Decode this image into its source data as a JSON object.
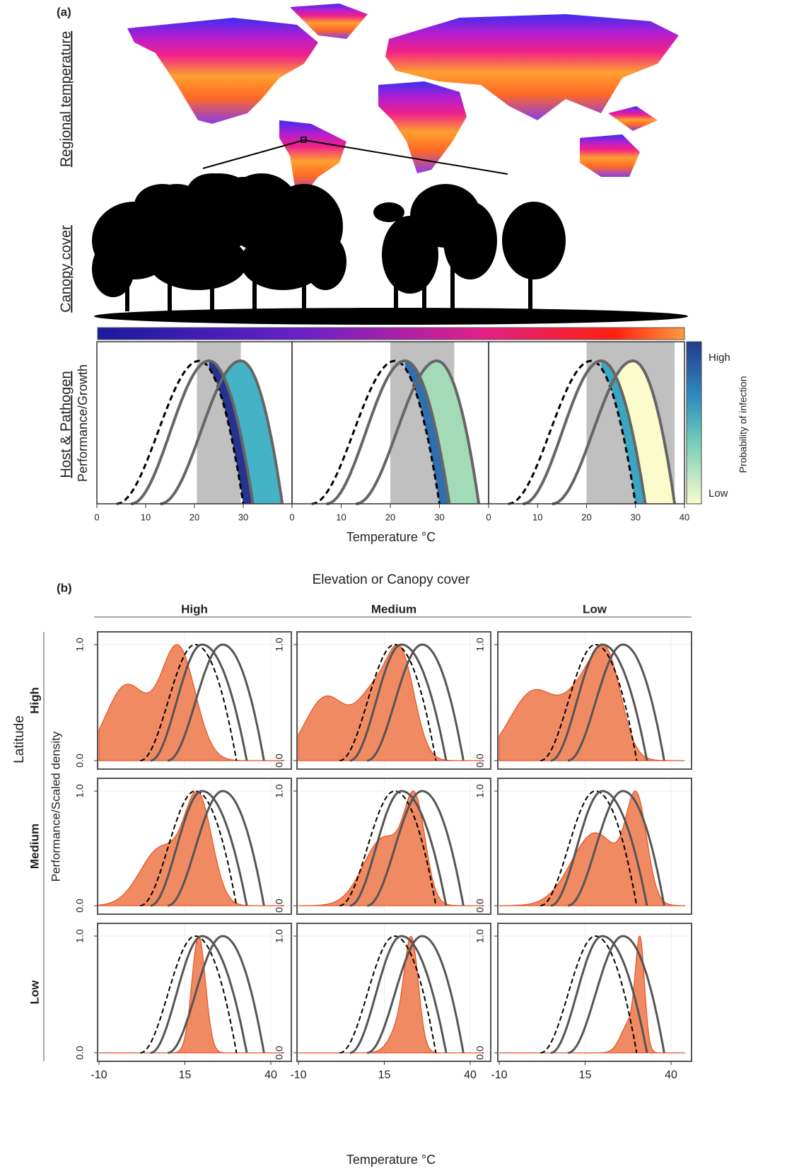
{
  "panel_a": {
    "label": "(a)",
    "row_labels": [
      "Regional temperature",
      "Canopy cover",
      "Host & Pathogen"
    ],
    "y_label": "Performance/Growth",
    "x_label": "Temperature °C",
    "xlim": [
      0,
      40
    ],
    "xticks": [
      0,
      10,
      20,
      30,
      40
    ],
    "legend": {
      "title": "Probability of infection",
      "high": "High",
      "low": "Low"
    }
  },
  "panel_b": {
    "label": "(b)",
    "title": "Elevation or Canopy cover",
    "columns": [
      "High",
      "Medium",
      "Low"
    ],
    "row_title": "Latitude",
    "rows": [
      "High",
      "Medium",
      "Low"
    ],
    "y_label": "Performance/Scaled density",
    "x_label": "Temperature °C",
    "xticks": [
      -10,
      15,
      40
    ],
    "yticks": [
      {
        "value": 0,
        "label": "0.0"
      },
      {
        "value": 1,
        "label": "1.0"
      }
    ],
    "ylim": [
      0,
      1
    ]
  }
}
